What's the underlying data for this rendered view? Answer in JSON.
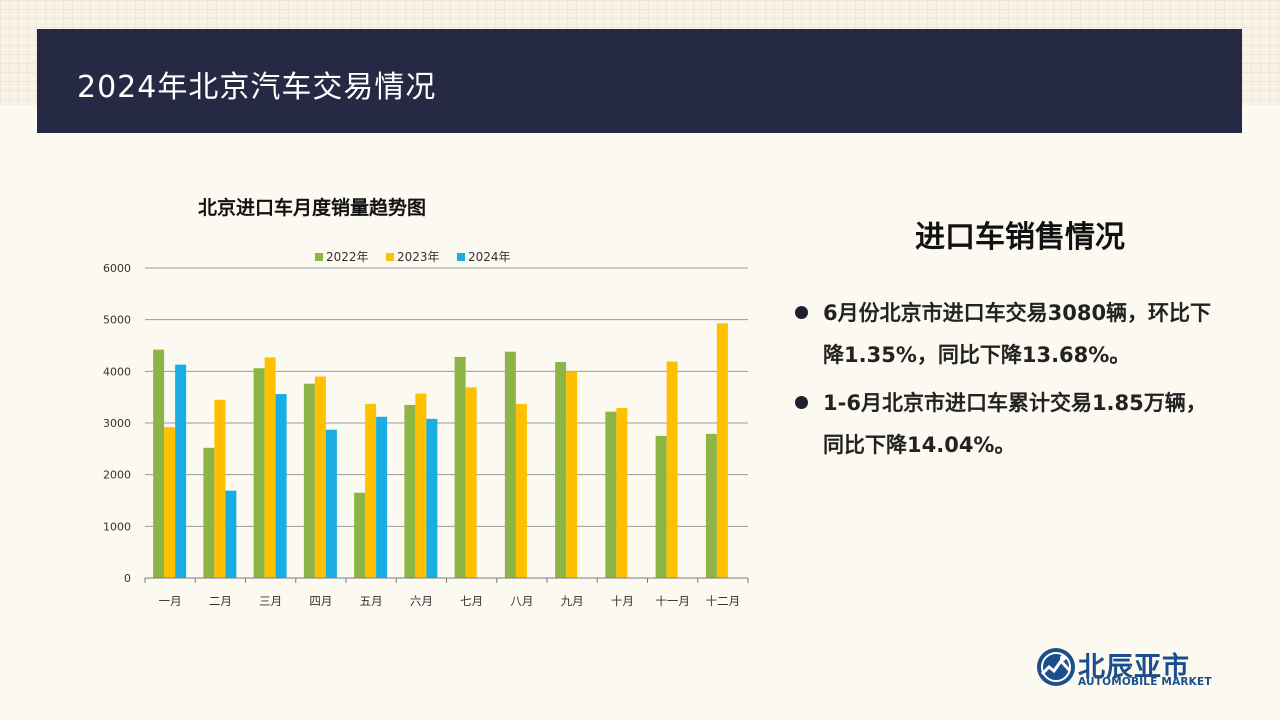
{
  "header": {
    "title": "2024年北京汽车交易情况"
  },
  "side": {
    "title": "进口车销售情况",
    "bullets": [
      "6月份北京市进口车交易3080辆，环比下降1.35%，同比下降13.68%。",
      "1-6月北京市进口车累计交易1.85万辆，同比下降14.04%。"
    ]
  },
  "logo": {
    "cn": "北辰亚市",
    "en": "AUTOMOBILE MARKET"
  },
  "colors": {
    "2022": "#8db545",
    "2023": "#ffc000",
    "2024": "#18aee3"
  },
  "chart_data": {
    "type": "bar",
    "title": "北京进口车月度销量趋势图",
    "categories": [
      "一月",
      "二月",
      "三月",
      "四月",
      "五月",
      "六月",
      "七月",
      "八月",
      "九月",
      "十月",
      "十一月",
      "十二月"
    ],
    "series": [
      {
        "name": "2022年",
        "values": [
          4420,
          2520,
          4060,
          3760,
          1650,
          3350,
          4280,
          4380,
          4180,
          3220,
          2750,
          2790
        ]
      },
      {
        "name": "2023年",
        "values": [
          2920,
          3450,
          4270,
          3900,
          3370,
          3570,
          3690,
          3370,
          4000,
          3290,
          4190,
          4930
        ]
      },
      {
        "name": "2024年",
        "values": [
          4130,
          1690,
          3560,
          2870,
          3120,
          3080,
          null,
          null,
          null,
          null,
          null,
          null
        ]
      }
    ],
    "ylim": [
      0,
      6000
    ],
    "yticks": [
      0,
      1000,
      2000,
      3000,
      4000,
      5000,
      6000
    ],
    "grid": true,
    "legend": "top"
  }
}
